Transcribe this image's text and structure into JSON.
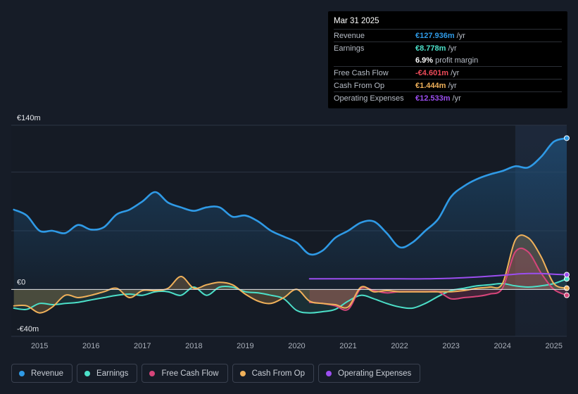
{
  "tooltip": {
    "date": "Mar 31 2025",
    "rows": [
      {
        "label": "Revenue",
        "value": "€127.936m",
        "unit": "/yr",
        "color": "#2f9ae6"
      },
      {
        "label": "Earnings",
        "value": "€8.778m",
        "unit": "/yr",
        "color": "#4ce0c9"
      },
      {
        "label": "",
        "value": "6.9%",
        "unit": "profit margin",
        "color": "#ffffff"
      },
      {
        "label": "Free Cash Flow",
        "value": "-€4.601m",
        "unit": "/yr",
        "color": "#ef4b5a"
      },
      {
        "label": "Cash From Op",
        "value": "€1.444m",
        "unit": "/yr",
        "color": "#f0b15a"
      },
      {
        "label": "Operating Expenses",
        "value": "€12.533m",
        "unit": "/yr",
        "color": "#9b4ef0"
      }
    ]
  },
  "legend": [
    {
      "label": "Revenue",
      "color": "#2f9ae6"
    },
    {
      "label": "Earnings",
      "color": "#4ce0c9"
    },
    {
      "label": "Free Cash Flow",
      "color": "#d6457a"
    },
    {
      "label": "Cash From Op",
      "color": "#f0b15a"
    },
    {
      "label": "Operating Expenses",
      "color": "#9b4ef0"
    }
  ],
  "chart_data": {
    "type": "line",
    "title": "",
    "xlabel": "",
    "ylabel": "",
    "x_ticks": [
      "2015",
      "2016",
      "2017",
      "2018",
      "2019",
      "2020",
      "2021",
      "2022",
      "2023",
      "2024",
      "2025"
    ],
    "x_tick_values": [
      2015,
      2016,
      2017,
      2018,
      2019,
      2020,
      2021,
      2022,
      2023,
      2024,
      2025
    ],
    "xlim": [
      2014.45,
      2025.25
    ],
    "y_tick_labels": [
      "€140m",
      "€0",
      "-€40m"
    ],
    "y_tick_values": [
      140,
      0,
      -40
    ],
    "ylim": [
      -40,
      140
    ],
    "gridlines_y": [
      100,
      50
    ],
    "highlight_start": 2024.25,
    "series": [
      {
        "name": "Revenue",
        "color": "#2f9ae6",
        "fill": true,
        "x": [
          2014.5,
          2014.75,
          2015.0,
          2015.25,
          2015.5,
          2015.75,
          2016.0,
          2016.25,
          2016.5,
          2016.75,
          2017.0,
          2017.25,
          2017.5,
          2017.75,
          2018.0,
          2018.25,
          2018.5,
          2018.75,
          2019.0,
          2019.25,
          2019.5,
          2019.75,
          2020.0,
          2020.25,
          2020.5,
          2020.75,
          2021.0,
          2021.25,
          2021.5,
          2021.75,
          2022.0,
          2022.25,
          2022.5,
          2022.75,
          2023.0,
          2023.25,
          2023.5,
          2023.75,
          2024.0,
          2024.25,
          2024.5,
          2024.75,
          2025.0,
          2025.25
        ],
        "values": [
          68,
          63,
          50,
          50,
          48,
          55,
          51,
          53,
          64,
          68,
          75,
          83,
          74,
          70,
          67,
          70,
          70,
          62,
          63,
          58,
          50,
          45,
          40,
          30,
          33,
          44,
          50,
          57,
          58,
          48,
          36,
          40,
          50,
          60,
          79,
          88,
          94,
          98,
          101,
          105,
          104,
          113,
          126,
          129
        ]
      },
      {
        "name": "Earnings",
        "color": "#4ce0c9",
        "fill": true,
        "x": [
          2014.5,
          2014.75,
          2015.0,
          2015.25,
          2015.5,
          2015.75,
          2016.0,
          2016.25,
          2016.5,
          2016.75,
          2017.0,
          2017.25,
          2017.5,
          2017.75,
          2018.0,
          2018.25,
          2018.5,
          2018.75,
          2019.0,
          2019.25,
          2019.5,
          2019.75,
          2020.0,
          2020.25,
          2020.5,
          2020.75,
          2021.0,
          2021.25,
          2021.5,
          2021.75,
          2022.0,
          2022.25,
          2022.5,
          2022.75,
          2023.0,
          2023.25,
          2023.5,
          2023.75,
          2024.0,
          2024.25,
          2024.5,
          2024.75,
          2025.0,
          2025.25
        ],
        "values": [
          -16,
          -17,
          -12,
          -13,
          -12,
          -11,
          -9,
          -7,
          -5,
          -4,
          -5,
          -2,
          -2,
          -5,
          2,
          -5,
          2,
          2,
          -2,
          -3,
          -5,
          -8,
          -18,
          -20,
          -19,
          -17,
          -10,
          -5,
          -8,
          -12,
          -15,
          -16,
          -12,
          -6,
          -1,
          1,
          3,
          4,
          5,
          3,
          2,
          3,
          5,
          9
        ]
      },
      {
        "name": "Free Cash Flow",
        "color": "#d6457a",
        "fill": true,
        "x": [
          2020.25,
          2020.5,
          2020.75,
          2021.0,
          2021.25,
          2021.5,
          2021.75,
          2022.0,
          2022.5,
          2022.75,
          2023.0,
          2023.25,
          2023.5,
          2023.75,
          2024.0,
          2024.25,
          2024.5,
          2024.75,
          2025.0,
          2025.25
        ],
        "values": [
          -11,
          -12,
          -14,
          -17,
          1,
          -1,
          -3,
          -2,
          -2,
          -2,
          -8,
          -7,
          -6,
          -4,
          1,
          32,
          32,
          14,
          0,
          -5
        ]
      },
      {
        "name": "Cash From Op",
        "color": "#f0b15a",
        "fill": true,
        "x": [
          2014.5,
          2014.75,
          2015.0,
          2015.25,
          2015.5,
          2015.75,
          2016.0,
          2016.25,
          2016.5,
          2016.75,
          2017.0,
          2017.25,
          2017.5,
          2017.75,
          2018.0,
          2018.25,
          2018.5,
          2018.75,
          2019.0,
          2019.25,
          2019.5,
          2019.75,
          2020.0,
          2020.25,
          2020.5,
          2020.75,
          2021.0,
          2021.25,
          2021.5,
          2021.75,
          2022.0,
          2022.5,
          2022.75,
          2023.0,
          2023.25,
          2023.5,
          2023.75,
          2024.0,
          2024.25,
          2024.5,
          2024.75,
          2025.0,
          2025.25
        ],
        "values": [
          -14,
          -14,
          -20,
          -15,
          -5,
          -7,
          -5,
          -2,
          1,
          -7,
          -1,
          -1,
          1,
          11,
          1,
          4,
          6,
          4,
          -4,
          -10,
          -12,
          -7,
          0,
          -10,
          -12,
          -13,
          -15,
          2,
          -2,
          -1,
          -2,
          -2,
          -2,
          -2,
          -1,
          1,
          2,
          5,
          42,
          44,
          28,
          5,
          1
        ]
      },
      {
        "name": "Operating Expenses",
        "color": "#9b4ef0",
        "fill": false,
        "x": [
          2020.25,
          2021.0,
          2022.0,
          2022.5,
          2023.0,
          2023.5,
          2024.0,
          2024.25,
          2024.5,
          2024.75,
          2025.0,
          2025.25
        ],
        "values": [
          9,
          9,
          9,
          9,
          9.5,
          10.5,
          12,
          13,
          13.5,
          13.5,
          13,
          12.5
        ]
      }
    ]
  }
}
